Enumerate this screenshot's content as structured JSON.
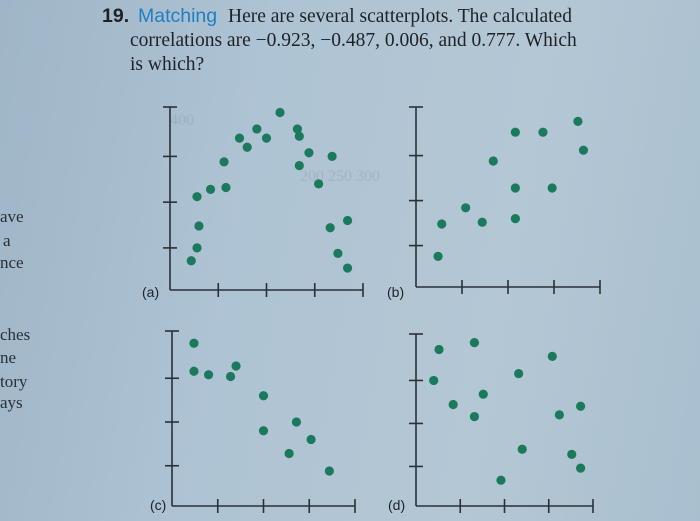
{
  "question": {
    "number": "19.",
    "keyword": "Matching",
    "lines": [
      "Here are several scatterplots. The calculated",
      "correlations are −0.923, −0.487, 0.006, and 0.777. Which",
      "is which?"
    ]
  },
  "left_margin_text": [
    "ave",
    "a",
    "nce",
    "ches",
    "ne",
    "tory",
    "ays"
  ],
  "colors": {
    "dot": "#1b7a5c",
    "axis": "#2b3038",
    "background": "#aec3d3",
    "keyword": "#1f7fc2"
  },
  "chart_data": [
    {
      "type": "scatter",
      "label": "(a)",
      "title": "",
      "xlabel": "",
      "ylabel": "",
      "grid": false,
      "xlim": [
        0,
        100
      ],
      "ylim": [
        0,
        100
      ],
      "x_ticks": 4,
      "y_ticks": 4,
      "points": [
        [
          57,
          97
        ],
        [
          45,
          88
        ],
        [
          66,
          88
        ],
        [
          36,
          83
        ],
        [
          50,
          83
        ],
        [
          67,
          84
        ],
        [
          40,
          78
        ],
        [
          72,
          75
        ],
        [
          84,
          73
        ],
        [
          28,
          70
        ],
        [
          67,
          68
        ],
        [
          29,
          56
        ],
        [
          21,
          55
        ],
        [
          14,
          51
        ],
        [
          77,
          58
        ],
        [
          15,
          35
        ],
        [
          92,
          38
        ],
        [
          83,
          34
        ],
        [
          14,
          23
        ],
        [
          11,
          16
        ],
        [
          87,
          20
        ],
        [
          92,
          12
        ]
      ]
    },
    {
      "type": "scatter",
      "label": "(b)",
      "title": "",
      "xlabel": "",
      "ylabel": "",
      "grid": false,
      "xlim": [
        0,
        100
      ],
      "ylim": [
        0,
        100
      ],
      "x_ticks": 4,
      "y_ticks": 4,
      "points": [
        [
          88,
          92
        ],
        [
          54,
          86
        ],
        [
          69,
          86
        ],
        [
          91,
          76
        ],
        [
          42,
          70
        ],
        [
          54,
          55
        ],
        [
          74,
          55
        ],
        [
          27,
          44
        ],
        [
          14,
          35
        ],
        [
          36,
          36
        ],
        [
          54,
          38
        ],
        [
          12,
          17
        ]
      ]
    },
    {
      "type": "scatter",
      "label": "(c)",
      "title": "",
      "xlabel": "",
      "ylabel": "",
      "grid": false,
      "xlim": [
        0,
        100
      ],
      "ylim": [
        0,
        100
      ],
      "x_ticks": 4,
      "y_ticks": 4,
      "points": [
        [
          12,
          93
        ],
        [
          12,
          77
        ],
        [
          20,
          75
        ],
        [
          35,
          80
        ],
        [
          32,
          74
        ],
        [
          50,
          63
        ],
        [
          50,
          43
        ],
        [
          68,
          48
        ],
        [
          76,
          38
        ],
        [
          64,
          30
        ],
        [
          86,
          20
        ]
      ]
    },
    {
      "type": "scatter",
      "label": "(d)",
      "title": "",
      "xlabel": "",
      "ylabel": "",
      "grid": false,
      "xlim": [
        0,
        100
      ],
      "ylim": [
        0,
        100
      ],
      "x_ticks": 4,
      "y_ticks": 4,
      "points": [
        [
          33,
          95
        ],
        [
          13,
          91
        ],
        [
          77,
          87
        ],
        [
          58,
          77
        ],
        [
          10,
          73
        ],
        [
          21,
          59
        ],
        [
          38,
          65
        ],
        [
          93,
          58
        ],
        [
          81,
          53
        ],
        [
          33,
          52
        ],
        [
          60,
          33
        ],
        [
          88,
          30
        ],
        [
          93,
          22
        ],
        [
          48,
          15
        ]
      ]
    }
  ]
}
